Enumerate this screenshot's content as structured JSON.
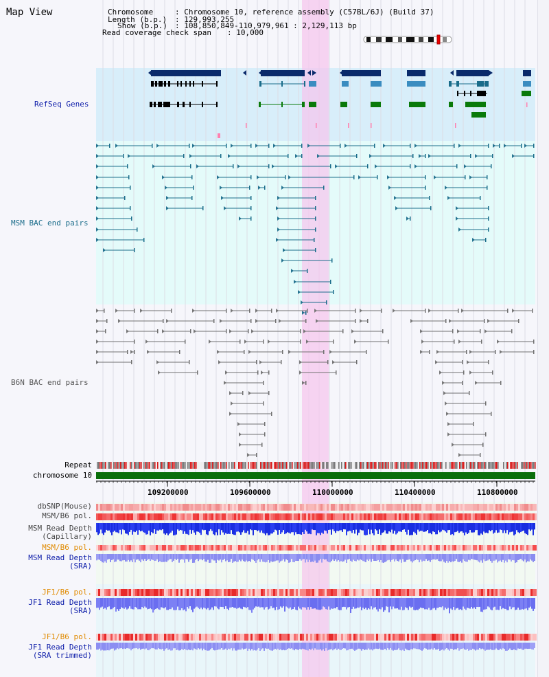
{
  "title": "Map View",
  "header": {
    "chromosome_key": "Chromosome",
    "chromosome_val": ": Chromosome 10, reference assembly (C57BL/6J) (Build 37)",
    "length_key": "Length (b.p.)",
    "length_val": ": 129,993,255",
    "show_key": "Show (b.p.)",
    "show_val": ": 108,850,849-110,979,961 : 2,129,113 bp",
    "span_key": "Read coverage check span",
    "span_val": ": 10,000"
  },
  "tracks": {
    "refseq": "RefSeq Genes",
    "msm_bac": "MSM BAC end pairs",
    "b6n_bac": "B6N BAC end pairs",
    "repeat": "Repeat",
    "chromosome": "chromosome 10",
    "dbsnp": "dbSNP(Mouse)",
    "msm_b6_pol_1": "MSM/B6 pol.",
    "msm_depth_cap_1": "MSM Read Depth",
    "msm_depth_cap_2": "(Capillary)",
    "msm_b6_pol_2": "MSM/B6 pol.",
    "msm_depth_sra_1": "MSM Read Depth",
    "msm_depth_sra_2": "(SRA)",
    "jf1_pol_1": "JF1/B6 pol.",
    "jf1_depth_sra_1": "JF1 Read Depth",
    "jf1_depth_sra_2": "(SRA)",
    "jf1_pol_2": "JF1/B6 pol.",
    "jf1_depth_trim_1": "JF1 Read Depth",
    "jf1_depth_trim_2": "(SRA trimmed)"
  },
  "axis": {
    "ticks": [
      "109200000",
      "109600000",
      "110000000",
      "110400000",
      "110800000"
    ]
  },
  "colors": {
    "refseq_bg": "#d8eefa",
    "msm_bg": "#e4fbfa",
    "highlight": "#f7d4f0",
    "gene_dark": "#0a2a6b",
    "gene_mid": "#3a8cc0",
    "gene_green": "#0a7a0a",
    "bac_teal": "#1a6c8a",
    "bac_grey": "#707070",
    "chromosome": "#0a6e0a",
    "repeat_red": "#d81b1b",
    "depth_blue": "#1a2ee0",
    "depth_lblue": "#8a8cf0"
  }
}
